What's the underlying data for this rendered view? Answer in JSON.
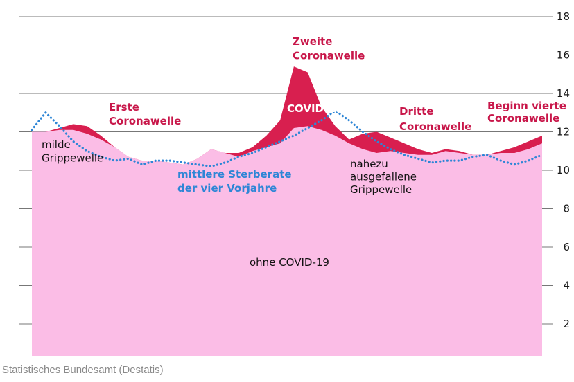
{
  "source": "Statistisches Bundesamt (Destatis)",
  "colors": {
    "base_area": "#FBBDE6",
    "covid_area": "#D81F4F",
    "average_line": "#2E86D6",
    "annotation_red": "#C8174A",
    "annotation_blue": "#2E86D6",
    "annotation_dark": "#111111",
    "grid": "#777777"
  },
  "chart_data": {
    "type": "area",
    "xlabel": "",
    "ylabel": "",
    "ylim": [
      0,
      18
    ],
    "yticks": [
      2,
      4,
      6,
      8,
      10,
      12,
      14,
      16,
      18
    ],
    "grid": true,
    "legend": "none",
    "x": [
      0,
      1,
      2,
      3,
      4,
      5,
      6,
      7,
      8,
      9,
      10,
      11,
      12,
      13,
      14,
      15,
      16,
      17,
      18,
      19,
      20,
      21,
      22,
      23,
      24,
      25,
      26,
      27,
      28,
      29,
      30,
      31,
      32,
      33,
      34,
      35,
      36,
      37
    ],
    "series": [
      {
        "name": "ohne COVID-19",
        "values": [
          12.0,
          12.0,
          12.1,
          12.1,
          11.9,
          11.6,
          11.2,
          10.7,
          10.5,
          10.5,
          10.4,
          10.3,
          10.6,
          11.1,
          10.9,
          10.7,
          11.0,
          11.2,
          11.4,
          12.2,
          12.3,
          12.1,
          11.8,
          11.4,
          11.1,
          10.9,
          11.0,
          10.9,
          10.8,
          10.8,
          11.0,
          10.9,
          10.8,
          10.8,
          10.9,
          10.9,
          11.1,
          11.4
        ]
      },
      {
        "name": "COVID-19",
        "values": [
          12.0,
          12.0,
          12.2,
          12.4,
          12.3,
          11.8,
          11.2,
          10.7,
          10.5,
          10.5,
          10.4,
          10.3,
          10.6,
          11.1,
          10.9,
          10.9,
          11.2,
          11.8,
          12.6,
          15.4,
          15.1,
          13.3,
          12.3,
          11.6,
          11.9,
          12.0,
          11.7,
          11.4,
          11.1,
          10.9,
          11.1,
          11.0,
          10.8,
          10.8,
          11.0,
          11.2,
          11.5,
          11.8
        ]
      },
      {
        "name": "mittlere Sterberate der vier Vorjahre",
        "values": [
          12.1,
          13.0,
          12.3,
          11.5,
          11.0,
          10.7,
          10.5,
          10.6,
          10.3,
          10.5,
          10.5,
          10.4,
          10.3,
          10.2,
          10.4,
          10.7,
          10.9,
          11.2,
          11.5,
          11.8,
          12.2,
          12.6,
          13.1,
          12.6,
          12.0,
          11.5,
          11.1,
          10.8,
          10.6,
          10.4,
          10.5,
          10.5,
          10.7,
          10.8,
          10.5,
          10.3,
          10.5,
          10.8
        ]
      }
    ],
    "annotations": [
      {
        "id": "milde",
        "lines": [
          "milde",
          "Grippewelle"
        ],
        "color": "dark",
        "bold": false
      },
      {
        "id": "erste",
        "lines": [
          "Erste",
          "Coronawelle"
        ],
        "color": "red",
        "bold": true
      },
      {
        "id": "mittlere",
        "lines": [
          "mittlere Sterberate",
          "der vier Vorjahre"
        ],
        "color": "blue",
        "bold": true
      },
      {
        "id": "zweite",
        "lines": [
          "Zweite",
          "Coronawelle"
        ],
        "color": "red",
        "bold": true
      },
      {
        "id": "covid",
        "lines": [
          "COVID-19"
        ],
        "color": "white",
        "bold": true
      },
      {
        "id": "nahezu",
        "lines": [
          "nahezu",
          "ausgefallene",
          "Grippewelle"
        ],
        "color": "dark",
        "bold": false
      },
      {
        "id": "dritte",
        "lines": [
          "Dritte",
          "Coronawelle"
        ],
        "color": "red",
        "bold": true
      },
      {
        "id": "beginn",
        "lines": [
          "Beginn vierte",
          "Coronawelle"
        ],
        "color": "red",
        "bold": true
      },
      {
        "id": "ohne",
        "lines": [
          "ohne COVID-19"
        ],
        "color": "dark",
        "bold": false
      }
    ]
  }
}
